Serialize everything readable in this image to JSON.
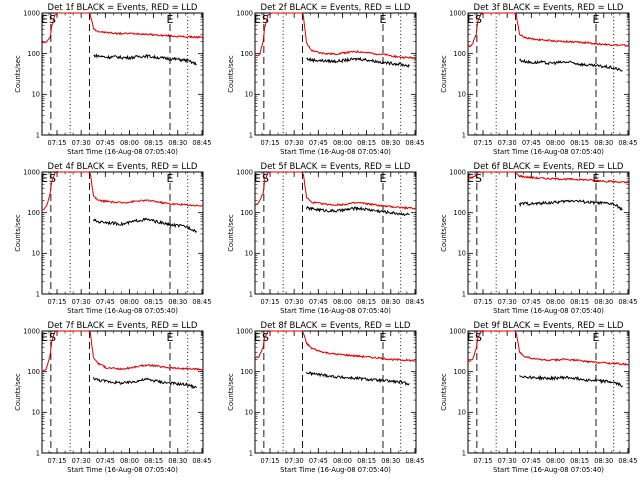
{
  "colors": {
    "events": "#000000",
    "lld": "#dd0000",
    "axes": "#000000",
    "background": "#ffffff"
  },
  "common": {
    "ylabel": "Counts/sec",
    "xlabel": "Start Time (16-Aug-08 07:05:40)",
    "x_tick_labels": [
      "07:15",
      "07:30",
      "07:45",
      "08:00",
      "08:15",
      "08:30",
      "08:45"
    ],
    "x_ticks_min": [
      9.33,
      24.33,
      39.33,
      54.33,
      69.33,
      84.33,
      99.33
    ],
    "xlim_min": [
      0,
      100
    ],
    "y_tick_labels": [
      "1",
      "10",
      "100",
      "1000"
    ],
    "y_ticks": [
      1,
      10,
      100,
      1000
    ],
    "ylim": [
      1,
      1000
    ],
    "y_scale": "log",
    "event_markers": [
      "E",
      "S",
      "E"
    ],
    "event_marker_x_min": [
      1.5,
      6.5,
      79.5
    ],
    "dashed_lines_min": [
      5.5,
      29.5,
      79.5
    ],
    "dotted_lines_min": [
      17.5,
      90.5
    ]
  },
  "chart_data": [
    {
      "type": "line",
      "title": "Det 1f BLACK = Events, RED = LLD",
      "series": [
        {
          "name": "LLD",
          "color": "#dd0000",
          "x": [
            0,
            2,
            3,
            5,
            6,
            8,
            10,
            12,
            14,
            16,
            18,
            20,
            22,
            24,
            26,
            28,
            29,
            30,
            32,
            35,
            40,
            45,
            50,
            55,
            60,
            65,
            70,
            75,
            80,
            85,
            90,
            96,
            100
          ],
          "y": [
            180,
            190,
            200,
            240,
            480,
            900,
            1000,
            1000,
            1000,
            1000,
            1000,
            1000,
            1000,
            1000,
            1000,
            1000,
            1000,
            900,
            420,
            350,
            330,
            320,
            310,
            315,
            310,
            300,
            290,
            280,
            275,
            265,
            260,
            255,
            250
          ]
        },
        {
          "name": "Events",
          "color": "#000000",
          "x": [
            32,
            35,
            40,
            45,
            50,
            55,
            60,
            65,
            70,
            75,
            80,
            85,
            90,
            96
          ],
          "y": [
            90,
            88,
            82,
            84,
            80,
            80,
            85,
            88,
            82,
            78,
            75,
            72,
            68,
            55
          ]
        }
      ]
    },
    {
      "type": "line",
      "title": "Det 2f BLACK = Events, RED = LLD",
      "series": [
        {
          "name": "LLD",
          "color": "#dd0000",
          "x": [
            0,
            2,
            3,
            5,
            6,
            8,
            10,
            12,
            14,
            16,
            18,
            20,
            22,
            24,
            26,
            28,
            29,
            30,
            32,
            35,
            40,
            45,
            50,
            55,
            60,
            65,
            70,
            75,
            80,
            85,
            90,
            96,
            100
          ],
          "y": [
            85,
            90,
            100,
            200,
            420,
            900,
            1000,
            1000,
            1000,
            1000,
            1000,
            1000,
            1000,
            1000,
            1000,
            1000,
            1000,
            900,
            180,
            120,
            105,
            100,
            98,
            105,
            110,
            112,
            105,
            100,
            95,
            88,
            82,
            80,
            78
          ]
        },
        {
          "name": "Events",
          "color": "#000000",
          "x": [
            32,
            35,
            40,
            45,
            50,
            55,
            60,
            65,
            70,
            75,
            80,
            85,
            90,
            96
          ],
          "y": [
            75,
            70,
            68,
            66,
            65,
            68,
            72,
            75,
            70,
            65,
            60,
            58,
            55,
            50
          ]
        }
      ]
    },
    {
      "type": "line",
      "title": "Det 3f BLACK = Events, RED = LLD",
      "series": [
        {
          "name": "LLD",
          "color": "#dd0000",
          "x": [
            0,
            2,
            3,
            5,
            6,
            8,
            10,
            12,
            14,
            16,
            18,
            20,
            22,
            24,
            26,
            28,
            29,
            30,
            32,
            35,
            40,
            45,
            50,
            55,
            60,
            65,
            70,
            75,
            80,
            85,
            90,
            96,
            100
          ],
          "y": [
            150,
            160,
            180,
            300,
            600,
            950,
            1000,
            1000,
            1000,
            1000,
            1000,
            1000,
            1000,
            1000,
            1000,
            1000,
            1000,
            900,
            300,
            250,
            230,
            220,
            210,
            205,
            200,
            195,
            190,
            185,
            175,
            170,
            165,
            160,
            155
          ]
        },
        {
          "name": "Events",
          "color": "#000000",
          "x": [
            32,
            35,
            40,
            45,
            50,
            55,
            60,
            65,
            70,
            75,
            80,
            85,
            90,
            96
          ],
          "y": [
            70,
            65,
            60,
            62,
            58,
            60,
            62,
            60,
            55,
            52,
            50,
            48,
            45,
            38
          ]
        }
      ]
    },
    {
      "type": "line",
      "title": "Det 4f BLACK = Events, RED = LLD",
      "series": [
        {
          "name": "LLD",
          "color": "#dd0000",
          "x": [
            0,
            2,
            3,
            5,
            6,
            8,
            10,
            12,
            14,
            16,
            18,
            20,
            22,
            24,
            26,
            28,
            29,
            30,
            32,
            35,
            40,
            45,
            50,
            55,
            60,
            65,
            70,
            75,
            80,
            85,
            90,
            96,
            100
          ],
          "y": [
            120,
            130,
            150,
            280,
            600,
            950,
            1000,
            1000,
            1000,
            1000,
            1000,
            1000,
            1000,
            1000,
            1000,
            1000,
            1000,
            900,
            250,
            200,
            190,
            180,
            175,
            185,
            195,
            200,
            190,
            175,
            165,
            160,
            155,
            150,
            148
          ]
        },
        {
          "name": "Events",
          "color": "#000000",
          "x": [
            32,
            35,
            40,
            45,
            50,
            55,
            60,
            65,
            70,
            75,
            80,
            85,
            90,
            96
          ],
          "y": [
            65,
            60,
            58,
            55,
            52,
            58,
            65,
            68,
            62,
            55,
            50,
            48,
            45,
            35
          ]
        }
      ]
    },
    {
      "type": "line",
      "title": "Det 5f BLACK = Events, RED = LLD",
      "series": [
        {
          "name": "LLD",
          "color": "#dd0000",
          "x": [
            0,
            2,
            3,
            5,
            6,
            8,
            10,
            12,
            14,
            16,
            18,
            20,
            22,
            24,
            26,
            28,
            29,
            30,
            32,
            35,
            40,
            45,
            50,
            55,
            60,
            65,
            70,
            75,
            80,
            85,
            90,
            96,
            100
          ],
          "y": [
            160,
            170,
            190,
            300,
            620,
            950,
            1000,
            1000,
            1000,
            1000,
            1000,
            1000,
            1000,
            1000,
            1000,
            1000,
            1000,
            900,
            240,
            180,
            170,
            160,
            155,
            160,
            170,
            175,
            165,
            155,
            145,
            140,
            135,
            130,
            125
          ]
        },
        {
          "name": "Events",
          "color": "#000000",
          "x": [
            32,
            35,
            40,
            45,
            50,
            55,
            60,
            65,
            70,
            75,
            80,
            85,
            90,
            96
          ],
          "y": [
            130,
            125,
            118,
            112,
            110,
            115,
            125,
            128,
            120,
            112,
            105,
            100,
            95,
            90
          ]
        }
      ]
    },
    {
      "type": "line",
      "title": "Det 6f BLACK = Events, RED = LLD",
      "series": [
        {
          "name": "LLD",
          "color": "#dd0000",
          "x": [
            0,
            2,
            3,
            5,
            6,
            8,
            10,
            12,
            14,
            16,
            18,
            20,
            22,
            24,
            26,
            28,
            29,
            30,
            32,
            35,
            40,
            45,
            50,
            55,
            60,
            65,
            70,
            75,
            80,
            85,
            90,
            96,
            100
          ],
          "y": [
            700,
            720,
            750,
            850,
            950,
            1000,
            1000,
            1000,
            1000,
            1000,
            1000,
            1000,
            1000,
            1000,
            1000,
            1000,
            1000,
            900,
            800,
            760,
            730,
            700,
            690,
            680,
            670,
            660,
            650,
            640,
            620,
            600,
            580,
            560,
            540
          ]
        },
        {
          "name": "Events",
          "color": "#000000",
          "x": [
            32,
            35,
            40,
            45,
            50,
            55,
            60,
            65,
            70,
            75,
            80,
            85,
            90,
            96
          ],
          "y": [
            160,
            170,
            165,
            170,
            175,
            180,
            190,
            200,
            190,
            180,
            175,
            170,
            165,
            120
          ]
        }
      ]
    },
    {
      "type": "line",
      "title": "Det 7f BLACK = Events, RED = LLD",
      "series": [
        {
          "name": "LLD",
          "color": "#dd0000",
          "x": [
            0,
            2,
            3,
            5,
            6,
            8,
            10,
            12,
            14,
            16,
            18,
            20,
            22,
            24,
            26,
            28,
            29,
            30,
            32,
            35,
            40,
            45,
            50,
            55,
            60,
            65,
            70,
            75,
            80,
            85,
            90,
            96,
            100
          ],
          "y": [
            100,
            110,
            130,
            250,
            550,
            950,
            1000,
            1000,
            1000,
            1000,
            1000,
            1000,
            1000,
            1000,
            1000,
            1000,
            1000,
            900,
            220,
            160,
            125,
            120,
            115,
            125,
            135,
            145,
            140,
            130,
            125,
            120,
            118,
            115,
            112
          ]
        },
        {
          "name": "Events",
          "color": "#000000",
          "x": [
            32,
            35,
            40,
            45,
            50,
            55,
            60,
            65,
            70,
            75,
            80,
            85,
            90,
            96
          ],
          "y": [
            70,
            62,
            58,
            55,
            52,
            55,
            60,
            65,
            60,
            55,
            52,
            50,
            48,
            40
          ]
        }
      ]
    },
    {
      "type": "line",
      "title": "Det 8f BLACK = Events, RED = LLD",
      "series": [
        {
          "name": "LLD",
          "color": "#dd0000",
          "x": [
            0,
            2,
            3,
            5,
            6,
            8,
            10,
            12,
            14,
            16,
            18,
            20,
            22,
            24,
            26,
            28,
            29,
            30,
            32,
            35,
            40,
            45,
            50,
            55,
            60,
            65,
            70,
            75,
            80,
            85,
            90,
            96,
            100
          ],
          "y": [
            220,
            230,
            250,
            400,
            700,
            950,
            1000,
            1000,
            1000,
            1000,
            1000,
            1000,
            1000,
            1000,
            1000,
            1000,
            1000,
            900,
            500,
            380,
            320,
            290,
            270,
            260,
            250,
            240,
            230,
            220,
            210,
            200,
            195,
            190,
            185
          ]
        },
        {
          "name": "Events",
          "color": "#000000",
          "x": [
            32,
            35,
            40,
            45,
            50,
            55,
            60,
            65,
            70,
            75,
            80,
            85,
            90,
            96
          ],
          "y": [
            95,
            90,
            85,
            80,
            75,
            72,
            70,
            68,
            65,
            62,
            60,
            58,
            55,
            50
          ]
        }
      ]
    },
    {
      "type": "line",
      "title": "Det 9f BLACK = Events, RED = LLD",
      "series": [
        {
          "name": "LLD",
          "color": "#dd0000",
          "x": [
            0,
            2,
            3,
            5,
            6,
            8,
            10,
            12,
            14,
            16,
            18,
            20,
            22,
            24,
            26,
            28,
            29,
            30,
            32,
            35,
            40,
            45,
            50,
            55,
            60,
            65,
            70,
            75,
            80,
            85,
            90,
            96,
            100
          ],
          "y": [
            180,
            190,
            210,
            350,
            650,
            950,
            1000,
            1000,
            1000,
            1000,
            1000,
            1000,
            1000,
            1000,
            1000,
            1000,
            1000,
            900,
            300,
            240,
            210,
            200,
            190,
            195,
            200,
            195,
            185,
            175,
            170,
            165,
            160,
            155,
            150
          ]
        },
        {
          "name": "Events",
          "color": "#000000",
          "x": [
            32,
            35,
            40,
            45,
            50,
            55,
            60,
            65,
            70,
            75,
            80,
            85,
            90,
            96
          ],
          "y": [
            80,
            75,
            72,
            70,
            68,
            70,
            72,
            70,
            66,
            62,
            60,
            58,
            55,
            45
          ]
        }
      ]
    }
  ]
}
